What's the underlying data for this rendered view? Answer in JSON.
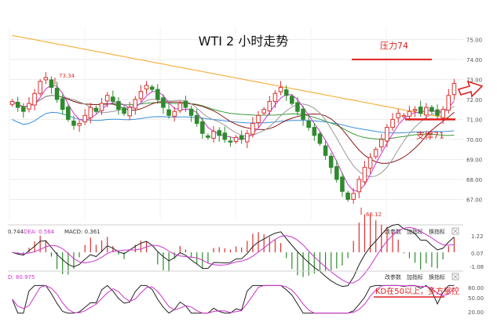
{
  "chart_data": {
    "type": "candlestick",
    "title": "WTI 2 小时走势",
    "y_axis": {
      "min": 66.0,
      "max": 75.6,
      "ticks": [
        "75.00",
        "74.00",
        "73.00",
        "72.00",
        "71.00",
        "70.00",
        "69.00",
        "68.00",
        "67.00"
      ]
    },
    "price_labels": {
      "high": "73.34",
      "low": "66.12"
    },
    "annotations": {
      "resistance_label": "压力74",
      "resistance_value": 74.0,
      "support_label": "支撑71",
      "support_value": 71.0
    },
    "closes": [
      71.9,
      71.6,
      71.4,
      71.8,
      72.3,
      72.9,
      73.1,
      72.6,
      72.0,
      71.5,
      71.0,
      70.7,
      70.8,
      71.2,
      71.6,
      71.4,
      71.8,
      72.2,
      71.9,
      71.5,
      71.3,
      71.6,
      72.0,
      72.4,
      72.7,
      72.5,
      72.0,
      71.6,
      71.2,
      71.4,
      71.8,
      71.6,
      71.2,
      70.8,
      70.3,
      70.1,
      70.4,
      70.2,
      70.0,
      69.9,
      70.1,
      70.0,
      70.3,
      70.8,
      71.2,
      71.5,
      71.9,
      72.3,
      72.6,
      72.2,
      71.8,
      71.4,
      71.0,
      70.6,
      70.2,
      69.8,
      69.2,
      68.6,
      68.0,
      67.4,
      67.0,
      67.3,
      68.0,
      68.6,
      69.1,
      69.5,
      70.0,
      70.6,
      71.0,
      71.3,
      71.2,
      71.4,
      71.5,
      71.3,
      71.6,
      71.4,
      71.2,
      71.5,
      72.2,
      72.8
    ],
    "candle_count": 80,
    "ma_orange": {
      "start": 75.2,
      "end": 71.0
    },
    "macd_panel": {
      "labels": [
        "0.744",
        "DEA: 0.564",
        "MACD: 0.361"
      ],
      "colors": [
        "#333333",
        "#cc33cc",
        "#333333"
      ],
      "ticks": [
        "1.22",
        "0.07",
        "-1.08"
      ],
      "buttons": [
        "改参数",
        "加指标",
        "换指标"
      ]
    },
    "kd_panel": {
      "labels": [
        "D: 80.975"
      ],
      "ticks": [
        "80.00",
        "50.00",
        "20.00"
      ],
      "buttons": [
        "改参数",
        "加指标",
        "换指标"
      ],
      "annotation": "KD在50以上，多方掌控"
    },
    "colors": {
      "up": "#d83030",
      "down": "#2e8b2e",
      "ma_orange": "#f5a623",
      "ma_blue": "#3b8fd9",
      "ma_green": "#3a9a3a",
      "ma_darkred": "#8b1a1a",
      "ma_magenta": "#d430d4",
      "ma_gray": "#9a9a9a",
      "annotation": "#e02020"
    }
  }
}
